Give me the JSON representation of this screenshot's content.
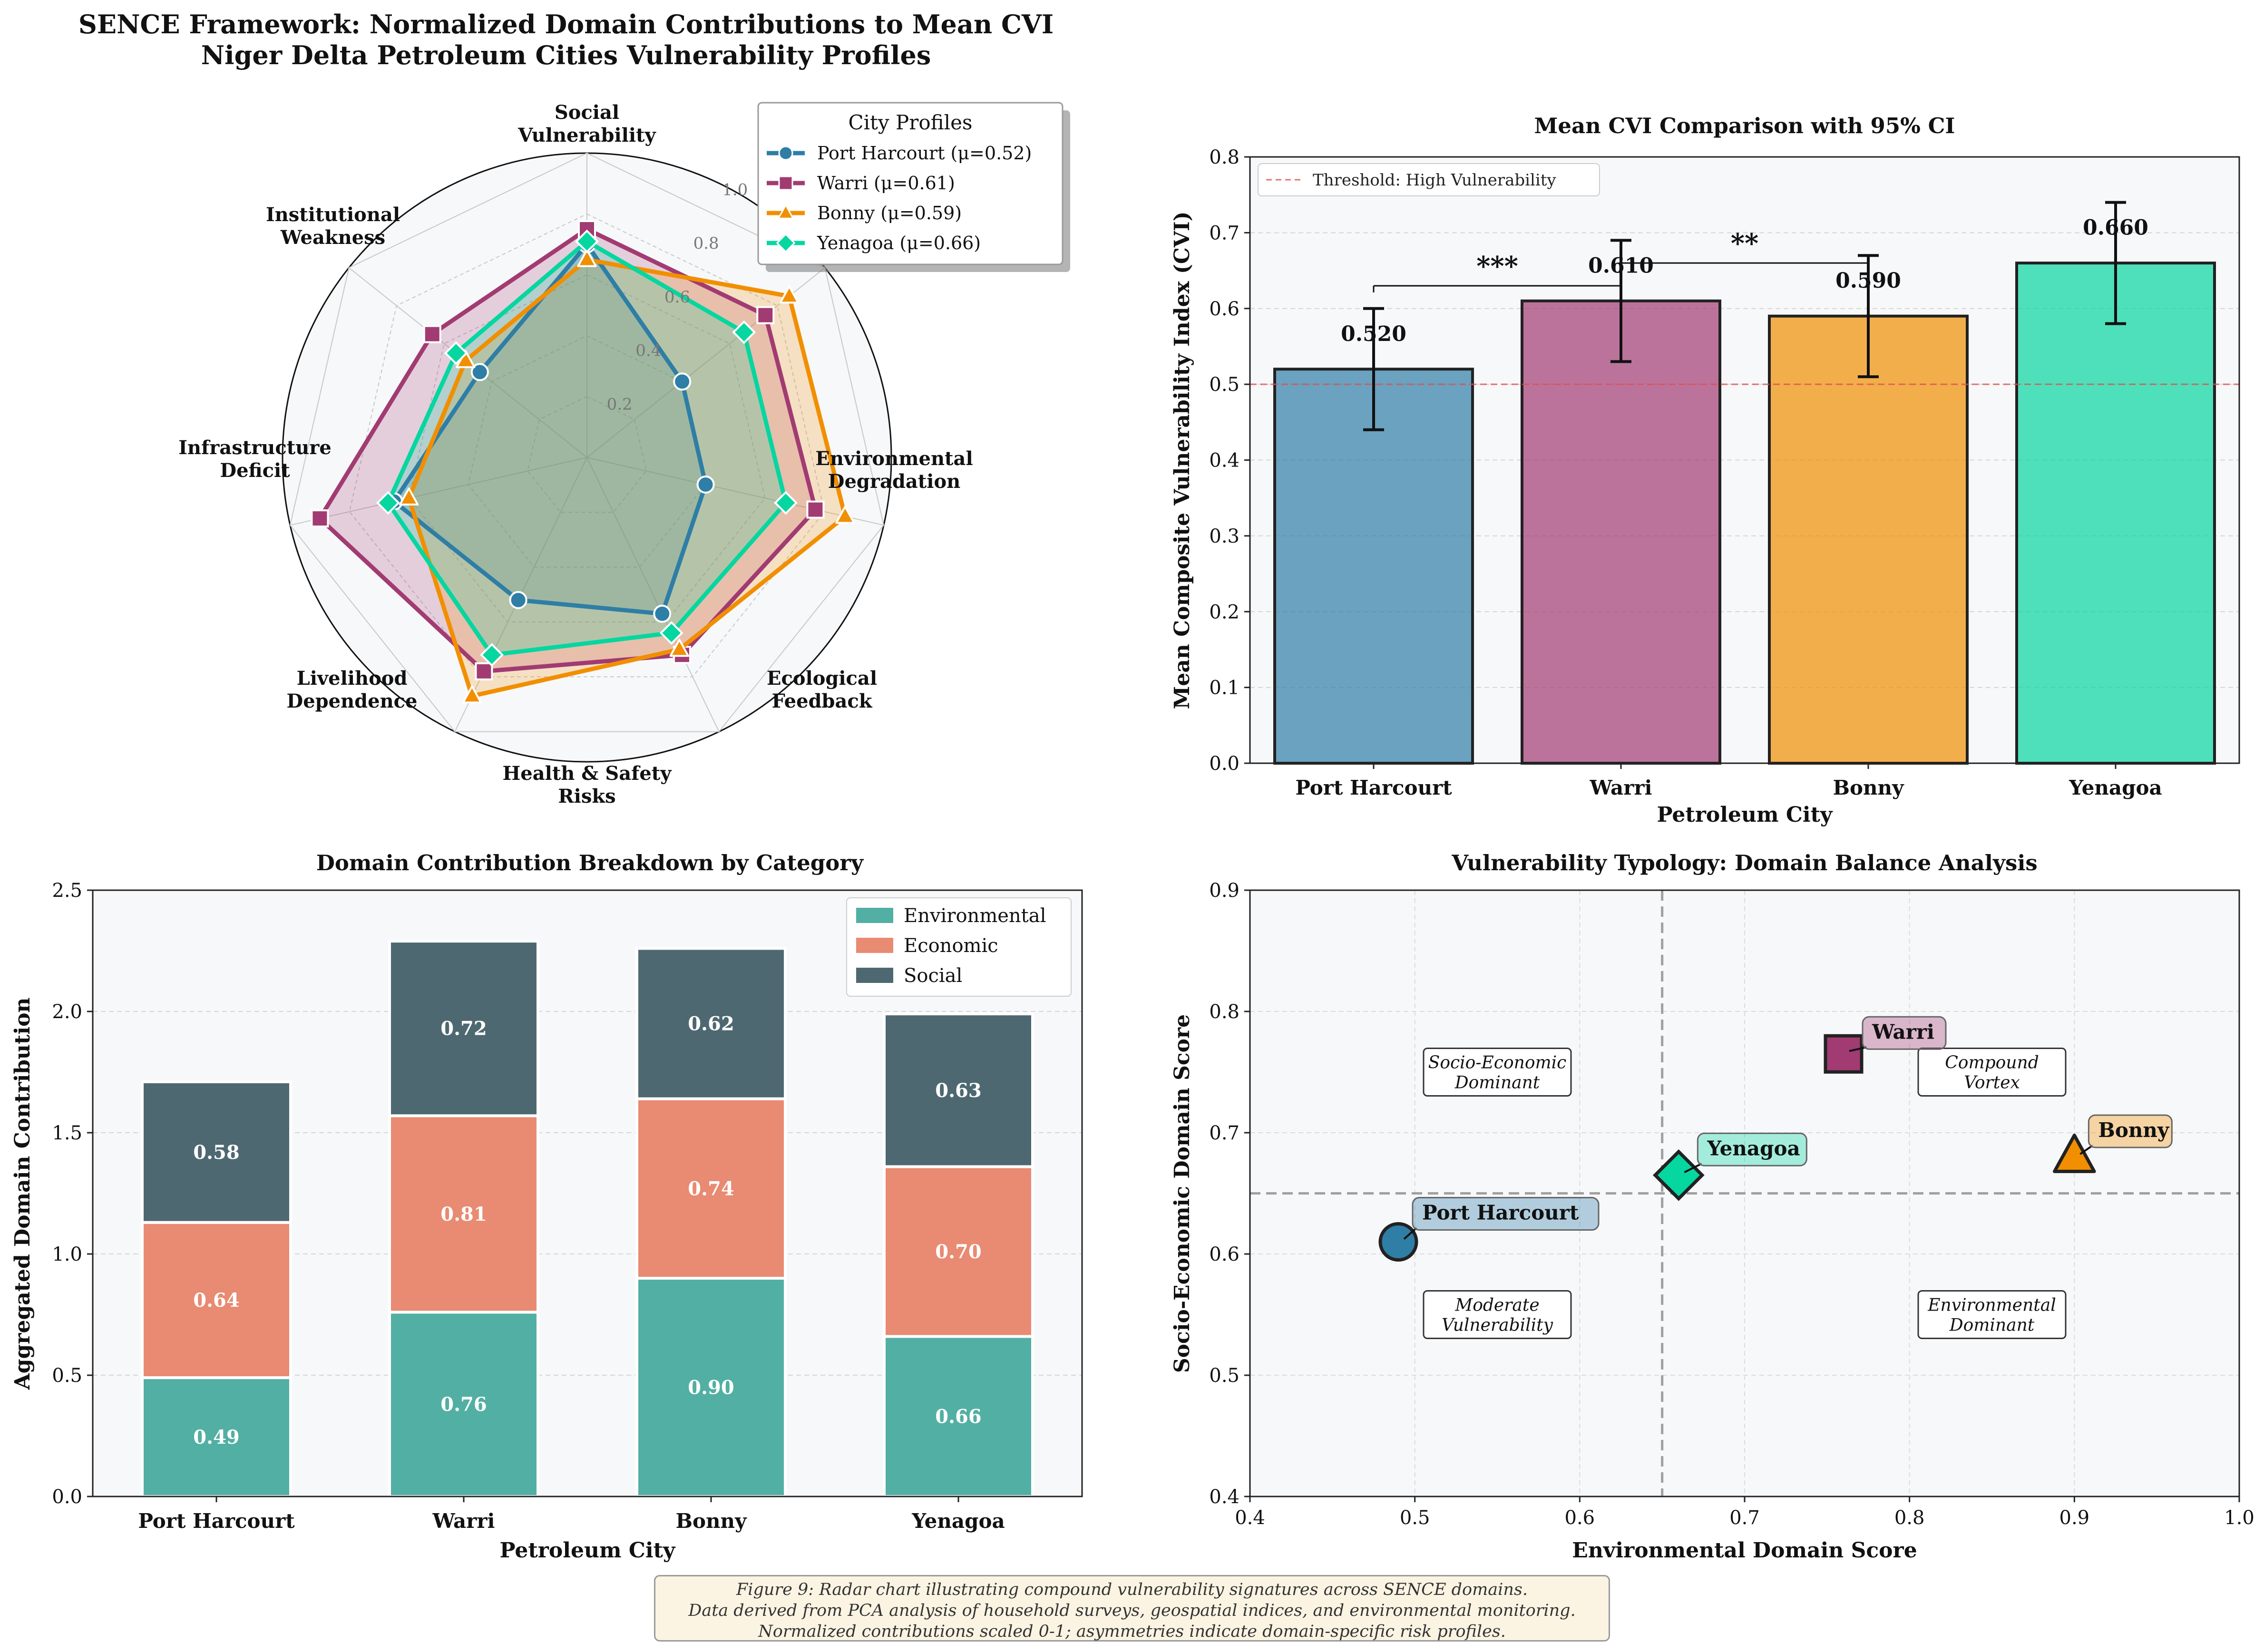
{
  "colors": {
    "port_harcourt": "#2e7ea6",
    "warri": "#a23b72",
    "bonny": "#f18f01",
    "yenagoa": "#06d6a0",
    "environmental": "#52afa3",
    "economic": "#e98a72",
    "social": "#4e6871",
    "threshold": "#e25050",
    "panel_bg": "#f7f8fa"
  },
  "chart_data": [
    {
      "type": "radar",
      "title_line1": "SENCE Framework: Normalized Domain Contributions to Mean CVI",
      "title_line2": "Niger Delta Petroleum Cities Vulnerability Profiles",
      "axes": [
        [
          "Social",
          "Vulnerability"
        ],
        [
          "",
          "Environmental",
          "Degradation"
        ],
        [
          "Ecological",
          "Feedback"
        ],
        [
          "Health & Safety",
          "Risks"
        ],
        [
          "Livelihood",
          "Dependence"
        ],
        [
          "Infrastructure",
          "Deficit"
        ],
        [
          "Institutional",
          "Weakness"
        ]
      ],
      "axis_labels_full": [
        "Social Vulnerability",
        "Environmental Degradation",
        "Ecological Feedback",
        "Health & Safety Risks",
        "Livelihood Dependence",
        "Infrastructure Deficit",
        "Institutional Weakness"
      ],
      "rticks": [
        "0.2",
        "0.4",
        "0.6",
        "0.8",
        "1.0"
      ],
      "rvalues": [
        0.2,
        0.4,
        0.6,
        0.8,
        1.0
      ],
      "legend_title": "City Profiles",
      "series": [
        {
          "name": "Port Harcourt (μ=0.52)",
          "key": "port_harcourt",
          "marker": "circle",
          "values": [
            0.7,
            0.4,
            0.4,
            0.57,
            0.52,
            0.65,
            0.45
          ]
        },
        {
          "name": "Warri (μ=0.61)",
          "key": "warri",
          "marker": "square",
          "values": [
            0.75,
            0.75,
            0.77,
            0.72,
            0.78,
            0.9,
            0.65
          ]
        },
        {
          "name": "Bonny (μ=0.59)",
          "key": "bonny",
          "marker": "triangle",
          "values": [
            0.65,
            0.85,
            0.87,
            0.7,
            0.87,
            0.6,
            0.51
          ]
        },
        {
          "name": "Yenagoa (μ=0.66)",
          "key": "yenagoa",
          "marker": "diamond",
          "values": [
            0.71,
            0.66,
            0.67,
            0.64,
            0.72,
            0.67,
            0.55
          ]
        }
      ]
    },
    {
      "type": "bar",
      "title": "Mean CVI Comparison with 95% CI",
      "xlabel": "Petroleum City",
      "ylabel": "Mean Composite Vulnerability Index (CVI)",
      "ylim": [
        0,
        0.8
      ],
      "yticks": [
        "0.0",
        "0.1",
        "0.2",
        "0.3",
        "0.4",
        "0.5",
        "0.6",
        "0.7",
        "0.8"
      ],
      "categories": [
        "Port Harcourt",
        "Warri",
        "Bonny",
        "Yenagoa"
      ],
      "values": [
        0.52,
        0.61,
        0.59,
        0.66
      ],
      "value_labels": [
        "0.520",
        "0.610",
        "0.590",
        "0.660"
      ],
      "ci_low": [
        0.44,
        0.53,
        0.51,
        0.58
      ],
      "ci_high": [
        0.6,
        0.69,
        0.67,
        0.74
      ],
      "threshold": 0.5,
      "threshold_label": "Threshold: High Vulnerability",
      "significance": [
        {
          "from": 0,
          "to": 1,
          "y": 0.63,
          "label": "***"
        },
        {
          "from": 1,
          "to": 2,
          "y": 0.66,
          "label": "**"
        }
      ]
    },
    {
      "type": "stacked-bar",
      "title": "Domain Contribution Breakdown by Category",
      "xlabel": "Petroleum City",
      "ylabel": "Aggregated Domain Contribution",
      "ylim": [
        0,
        2.5
      ],
      "yticks": [
        "0.0",
        "0.5",
        "1.0",
        "1.5",
        "2.0",
        "2.5"
      ],
      "categories": [
        "Port Harcourt",
        "Warri",
        "Bonny",
        "Yenagoa"
      ],
      "series": [
        {
          "name": "Environmental",
          "key": "environmental",
          "values": [
            0.49,
            0.76,
            0.9,
            0.66
          ],
          "labels": [
            "0.49",
            "0.76",
            "0.90",
            "0.66"
          ]
        },
        {
          "name": "Economic",
          "key": "economic",
          "values": [
            0.64,
            0.81,
            0.74,
            0.7
          ],
          "labels": [
            "0.64",
            "0.81",
            "0.74",
            "0.70"
          ]
        },
        {
          "name": "Social",
          "key": "social",
          "values": [
            0.58,
            0.72,
            0.62,
            0.63
          ],
          "labels": [
            "0.58",
            "0.72",
            "0.62",
            "0.63"
          ]
        }
      ]
    },
    {
      "type": "scatter",
      "title": "Vulnerability Typology: Domain Balance Analysis",
      "xlabel": "Environmental Domain Score",
      "ylabel": "Socio-Economic Domain Score",
      "xlim": [
        0.4,
        1.0
      ],
      "ylim": [
        0.4,
        0.9
      ],
      "xticks": [
        "0.4",
        "0.5",
        "0.6",
        "0.7",
        "0.8",
        "0.9",
        "1.0"
      ],
      "yticks": [
        "0.4",
        "0.5",
        "0.6",
        "0.7",
        "0.8",
        "0.9"
      ],
      "x_divider": 0.65,
      "y_divider": 0.65,
      "points": [
        {
          "name": "Port Harcourt",
          "key": "port_harcourt",
          "marker": "circle",
          "x": 0.49,
          "y": 0.61
        },
        {
          "name": "Warri",
          "key": "warri",
          "marker": "square",
          "x": 0.76,
          "y": 0.765
        },
        {
          "name": "Bonny",
          "key": "bonny",
          "marker": "triangle",
          "x": 0.9,
          "y": 0.68
        },
        {
          "name": "Yenagoa",
          "key": "yenagoa",
          "marker": "diamond",
          "x": 0.66,
          "y": 0.665
        }
      ],
      "quadrants": [
        {
          "lines": [
            "Socio-Economic",
            "Dominant"
          ],
          "x": 0.55,
          "y": 0.75
        },
        {
          "lines": [
            "Compound",
            "Vortex"
          ],
          "x": 0.85,
          "y": 0.75
        },
        {
          "lines": [
            "Moderate",
            "Vulnerability"
          ],
          "x": 0.55,
          "y": 0.55
        },
        {
          "lines": [
            "Environmental",
            "Dominant"
          ],
          "x": 0.85,
          "y": 0.55
        }
      ]
    }
  ],
  "caption": {
    "line1": "Figure 9: Radar chart illustrating compound vulnerability signatures across SENCE domains.",
    "line2": "Data derived from PCA analysis of household surveys, geospatial indices, and environmental monitoring.",
    "line3": "Normalized contributions scaled 0-1; asymmetries indicate domain-specific risk profiles."
  }
}
